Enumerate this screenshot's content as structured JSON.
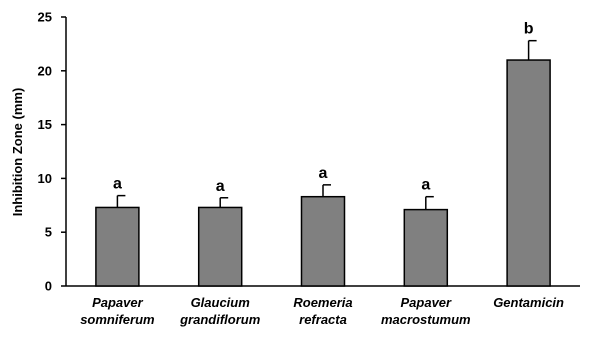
{
  "chart_data": {
    "type": "bar",
    "ylabel": "Inhibition Zone (mm)",
    "xlabel": "",
    "ylim": [
      0,
      25
    ],
    "yticks": [
      0,
      5,
      10,
      15,
      20,
      25
    ],
    "categories": [
      [
        "Papaver",
        "somniferum"
      ],
      [
        "Glaucium",
        "grandiflorum"
      ],
      [
        "Roemeria",
        "refracta"
      ],
      [
        "Papaver",
        "macrostumum"
      ],
      [
        "Gentamicin"
      ]
    ],
    "values": [
      7.3,
      7.3,
      8.3,
      7.1,
      21.0
    ],
    "errors": [
      1.1,
      0.9,
      1.1,
      1.2,
      1.8
    ],
    "significance": [
      "a",
      "a",
      "a",
      "a",
      "b"
    ],
    "bar_color": "#808080",
    "bar_stroke": "#000000",
    "grid": false,
    "legend": "none"
  }
}
